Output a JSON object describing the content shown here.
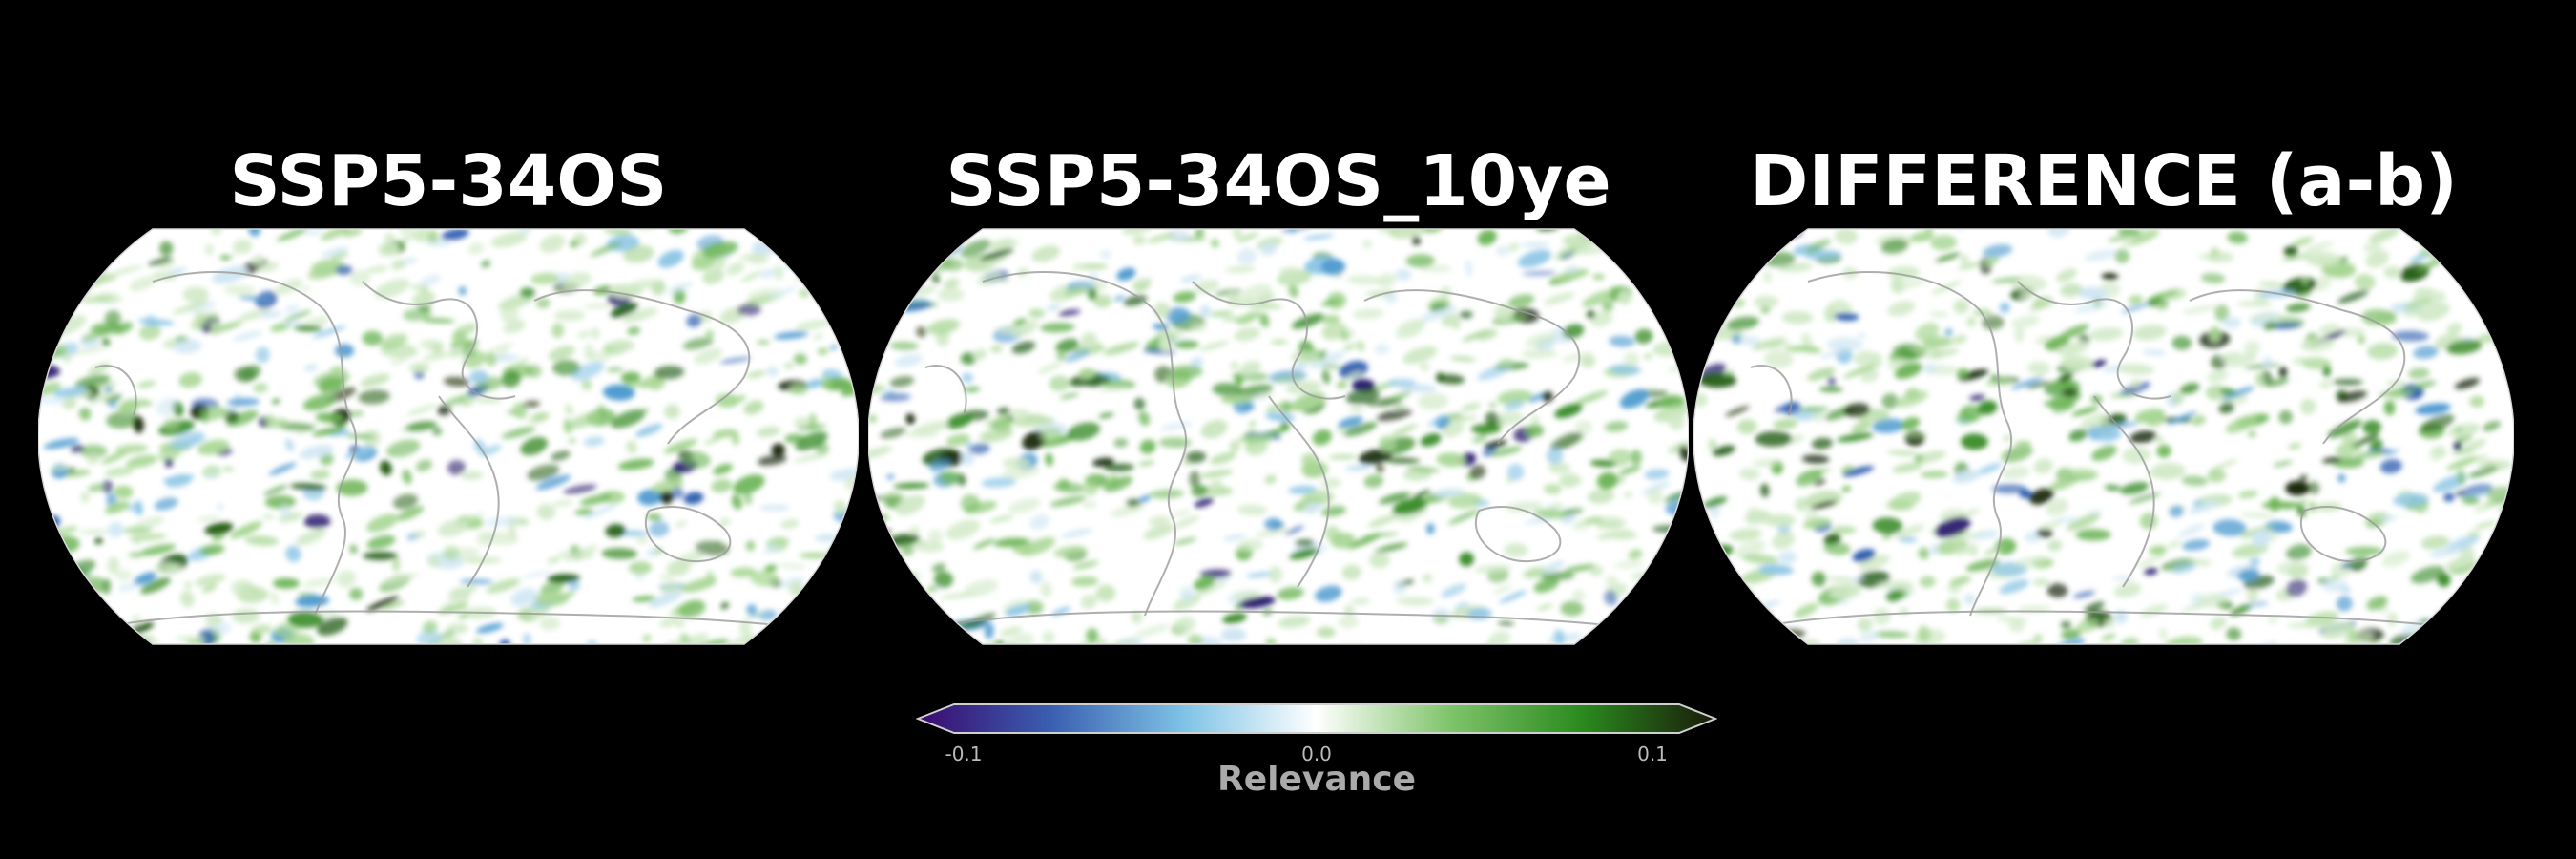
{
  "panels": [
    {
      "title": "SSP5-34OS"
    },
    {
      "title": "SSP5-34OS_10ye"
    },
    {
      "title": "DIFFERENCE (a-b)"
    }
  ],
  "colorbar": {
    "label": "Relevance",
    "ticks": [
      "-0.1",
      "0.0",
      "0.1"
    ],
    "range": [
      -0.1,
      0.1
    ],
    "extend": "both",
    "colors": [
      "#3b0a6e",
      "#3a5fb0",
      "#7ec3e6",
      "#ffffff",
      "#7fc46a",
      "#2a8a1e",
      "#1a1a0a"
    ]
  },
  "map": {
    "projection": "robinson-like global (ellipse)",
    "background": "#ffffff",
    "coastline_color": "#9a9a9a"
  }
}
